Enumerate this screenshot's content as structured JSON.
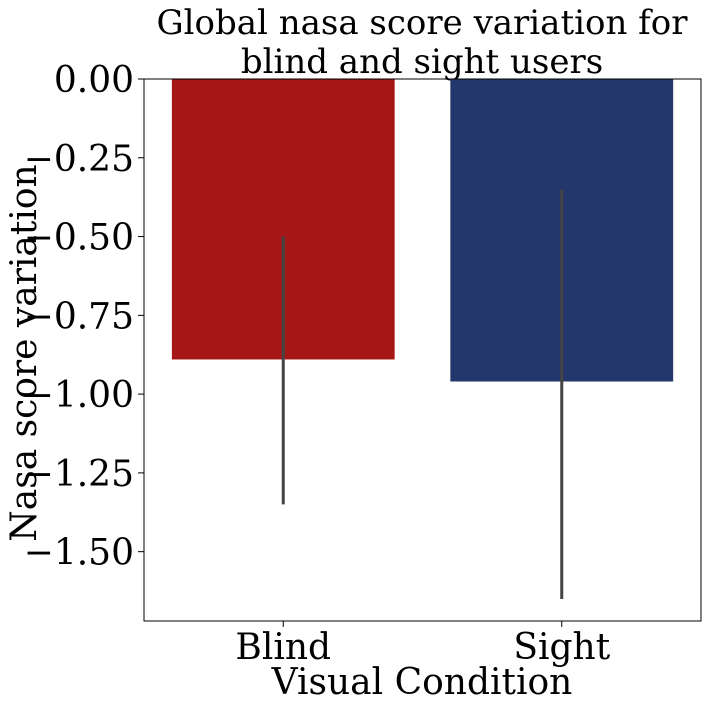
{
  "chart_data": {
    "type": "bar",
    "title": [
      "Global nasa score variation for",
      "blind and sight users"
    ],
    "xlabel": "Visual Condition",
    "ylabel": "Nasa score variation",
    "categories": [
      "Blind",
      "Sight"
    ],
    "values": [
      -0.89,
      -0.96
    ],
    "error_low": [
      -1.35,
      -1.65
    ],
    "error_high": [
      -0.5,
      -0.35
    ],
    "colors": [
      "#a51717",
      "#24376c"
    ],
    "error_color": "#444444",
    "ylim": [
      -1.72,
      0.0
    ],
    "yticks": [
      0.0,
      -0.25,
      -0.5,
      -0.75,
      -1.0,
      -1.25,
      -1.5
    ],
    "ytick_labels": [
      "0.00",
      "−0.25",
      "−0.50",
      "−0.75",
      "−1.00",
      "−1.25",
      "−1.50"
    ],
    "grid": false,
    "legend": "none"
  }
}
